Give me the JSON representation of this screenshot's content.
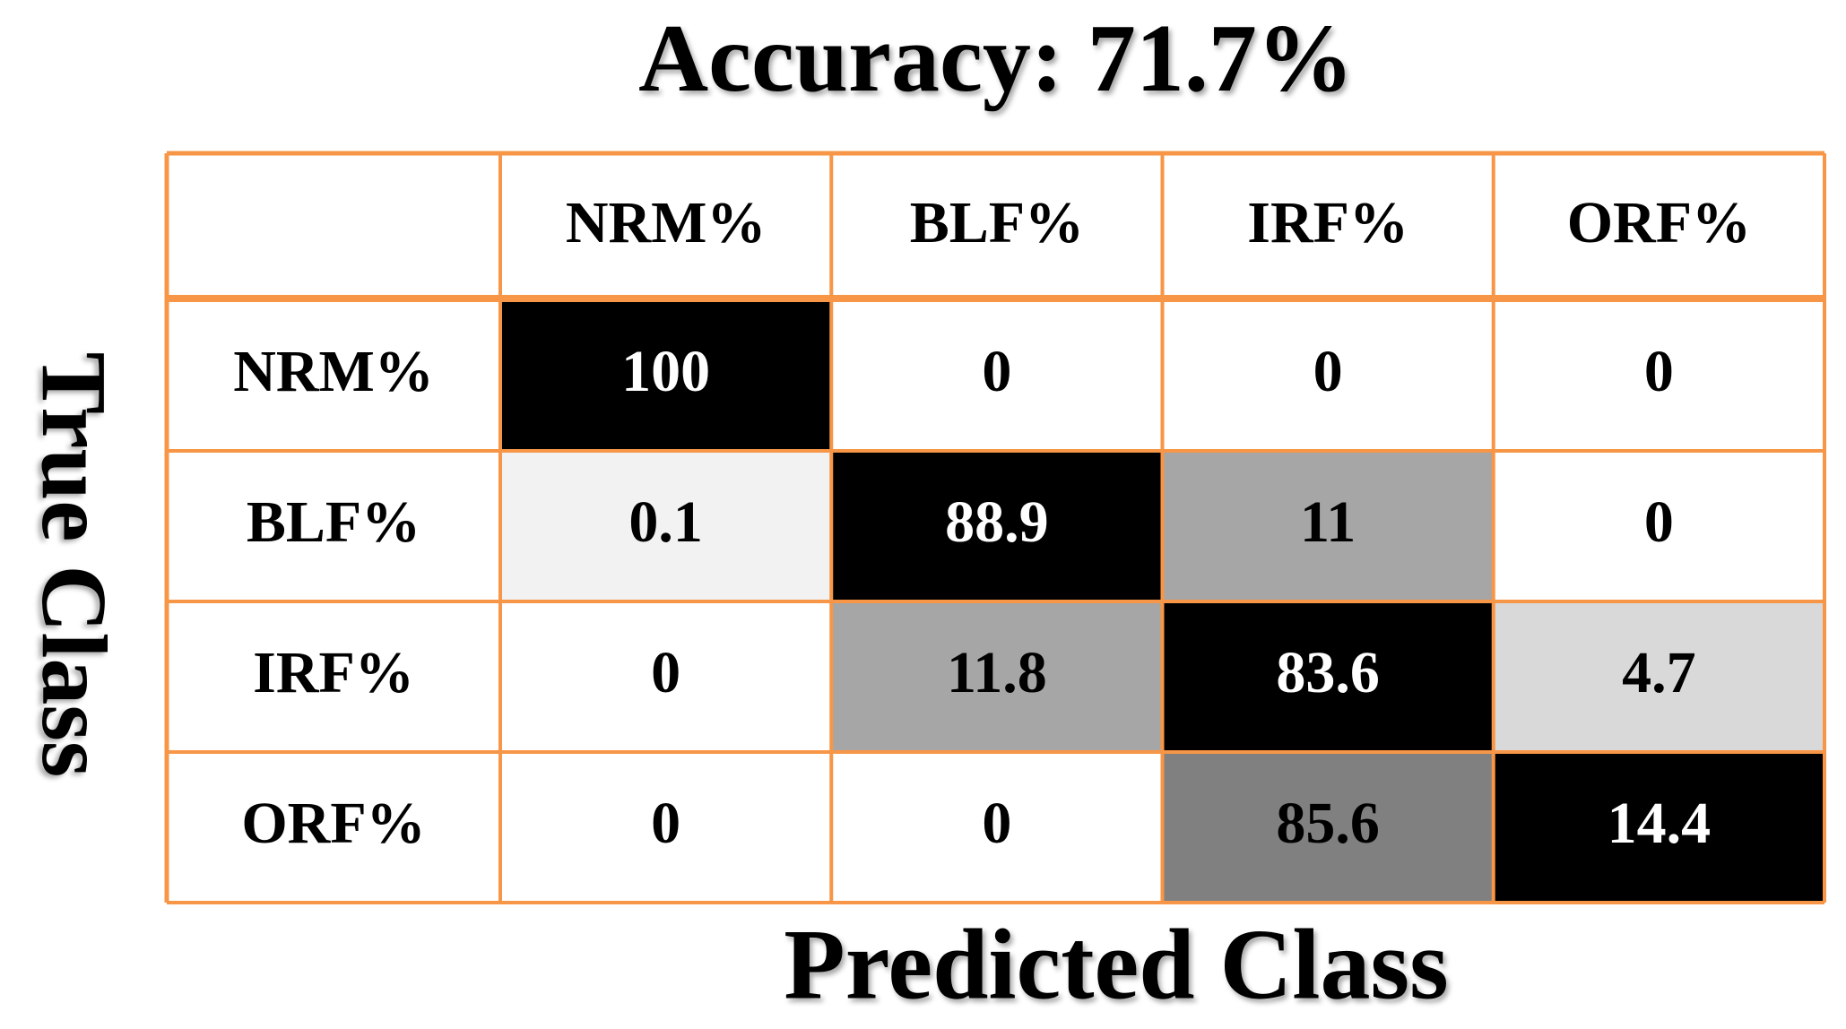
{
  "chart_data": {
    "type": "heatmap",
    "title": "Accuracy: 71.7%",
    "xlabel": "Predicted Class",
    "ylabel": "True Class",
    "x_categories": [
      "NRM%",
      "BLF%",
      "IRF%",
      "ORF%"
    ],
    "y_categories": [
      "NRM%",
      "BLF%",
      "IRF%",
      "ORF%"
    ],
    "values": [
      [
        100,
        0,
        0,
        0
      ],
      [
        0.1,
        88.9,
        11,
        0
      ],
      [
        0,
        11.8,
        83.6,
        4.7
      ],
      [
        0,
        0,
        85.6,
        14.4
      ]
    ],
    "colors": [
      [
        "#000000",
        "#ffffff",
        "#ffffff",
        "#ffffff"
      ],
      [
        "#f2f2f2",
        "#000000",
        "#a6a6a6",
        "#ffffff"
      ],
      [
        "#ffffff",
        "#a6a6a6",
        "#000000",
        "#d9d9d9"
      ],
      [
        "#ffffff",
        "#ffffff",
        "#808080",
        "#000000"
      ]
    ],
    "border_color": "#f79646"
  }
}
